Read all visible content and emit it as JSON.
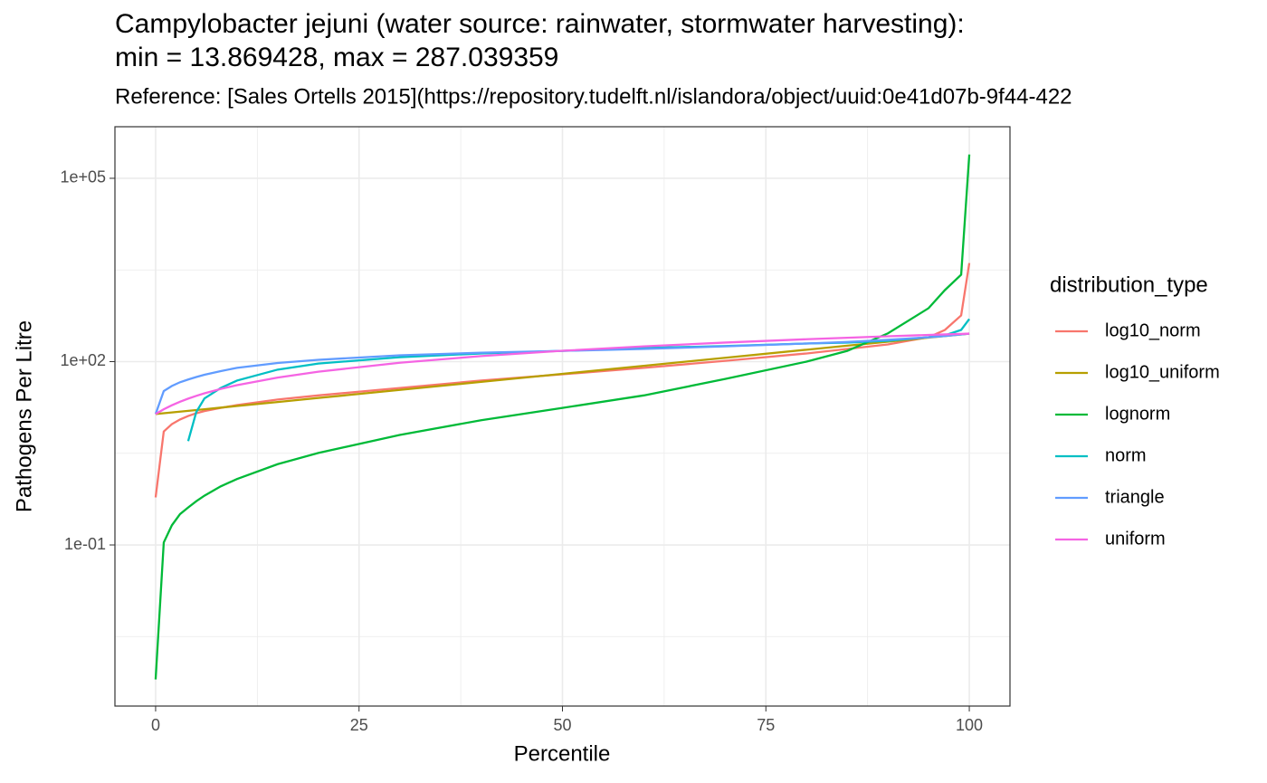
{
  "chart_data": {
    "type": "line",
    "title": [
      "Campylobacter jejuni (water source: rainwater, stormwater harvesting):",
      "min = 13.869428, max = 287.039359"
    ],
    "subtitle": "Reference: [Sales Ortells 2015](https://repository.tudelft.nl/islandora/object/uuid:0e41d07b-9f44-422",
    "x_label": "Percentile",
    "y_label": "Pathogens Per Litre",
    "legend_title": "distribution_type",
    "legend_position": "right",
    "grid": true,
    "y_scale": "log",
    "xlim": [
      -5,
      105
    ],
    "xticks": [
      0,
      25,
      50,
      75,
      100
    ],
    "x_minor_ticks": [
      12.5,
      37.5,
      62.5,
      87.5
    ],
    "ylim": [
      0.000231,
      698000
    ],
    "yticks": [
      {
        "value": 100000,
        "label": "1e+05"
      },
      {
        "value": 100,
        "label": "1e+02"
      },
      {
        "value": 0.1,
        "label": "1e-01"
      }
    ],
    "y_minor_ticks": [
      3162.28,
      3.16228,
      0.00316228
    ],
    "x": [
      0,
      1,
      2,
      3,
      4,
      5,
      6,
      8,
      10,
      15,
      20,
      30,
      40,
      50,
      60,
      70,
      80,
      85,
      90,
      95,
      97,
      99,
      100
    ],
    "series": [
      {
        "name": "log10_norm",
        "color": "#F8766D",
        "values": [
          0.6,
          7.2,
          9.5,
          11.3,
          12.9,
          14.3,
          15.5,
          17.5,
          19.4,
          24,
          28,
          37,
          49,
          62,
          79,
          103,
          136,
          161,
          191,
          251,
          330,
          570,
          4100
        ]
      },
      {
        "name": "log10_uniform",
        "color": "#B79F00",
        "values": [
          13.87,
          14.29,
          14.74,
          15.19,
          15.66,
          16.14,
          16.63,
          17.68,
          18.78,
          21.85,
          25.42,
          34.43,
          46.61,
          63.1,
          85.4,
          115.7,
          156.6,
          182.2,
          212.0,
          246.7,
          262.1,
          278.5,
          287.04
        ]
      },
      {
        "name": "lognorm",
        "color": "#00BA38",
        "values": [
          0.00063,
          0.11,
          0.21,
          0.32,
          0.41,
          0.52,
          0.64,
          0.91,
          1.2,
          2.1,
          3.2,
          6.3,
          11,
          17.5,
          28,
          52,
          100,
          150,
          290,
          750,
          1480,
          2640,
          245000
        ]
      },
      {
        "name": "norm",
        "color": "#00BFC4",
        "values": [
          null,
          null,
          null,
          null,
          5.0,
          15,
          25,
          37,
          49,
          74,
          93,
          118,
          136,
          150,
          167,
          180,
          198,
          205,
          219,
          251,
          269,
          330,
          497
        ]
      },
      {
        "name": "triangle",
        "color": "#619CFF",
        "values": [
          13.87,
          33,
          40,
          46,
          51,
          56,
          61,
          70,
          79,
          95,
          107,
          127,
          140,
          150,
          161,
          178,
          198,
          210,
          227,
          250,
          262,
          278,
          287
        ]
      },
      {
        "name": "uniform",
        "color": "#F564E3",
        "values": [
          13.87,
          16.6,
          19.33,
          22.07,
          24.8,
          27.53,
          30.26,
          35.72,
          41.19,
          54.85,
          68.5,
          95.82,
          123.14,
          150.45,
          177.77,
          205.09,
          232.4,
          246.06,
          259.72,
          273.38,
          278.84,
          284.31,
          287.04
        ]
      }
    ]
  }
}
